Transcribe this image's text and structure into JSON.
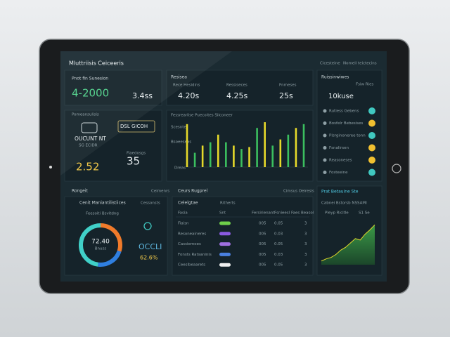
{
  "header": {
    "title": "Mluttriisis Ceiceeris",
    "links": [
      "Cicesteine",
      "Nomeil teictecins"
    ]
  },
  "summary": {
    "label": "Pnot fin Sunesion",
    "value": "4-2000",
    "side_value": "3.4ss"
  },
  "metrics": {
    "title": "Resisea",
    "items": [
      {
        "label": "Rece Hesidins",
        "value": "4.20s"
      },
      {
        "label": "Ressiseces",
        "value": "4.25s"
      },
      {
        "label": "Fnmeses",
        "value": "25s"
      }
    ]
  },
  "activity": {
    "title": "Ruissinwiwes",
    "link": "Fsiw Ries",
    "stat": "10kuse",
    "items": [
      "Rutiess Gebens",
      "Bosfelr Bebesises",
      "Plsrginoneree tonn",
      "Fsnalirsen",
      "Reasoneses",
      "Fosteeine"
    ]
  },
  "promo": {
    "title": "Pomeansulisis",
    "badge": "DSL GICOH",
    "headline": "OUCUNT NT",
    "subline": "SG ECIDR",
    "value_a": "2.52",
    "value_b": "35",
    "label_b": "Fiaedosgs"
  },
  "bar_panel": {
    "title": "Fessrearlise Puecoites Silconeer",
    "label_a": "Scesnter",
    "label_b": "Bsoeeseas",
    "label_c": "Dreas",
    "values": [
      90,
      30,
      45,
      52,
      68,
      52,
      45,
      38,
      42,
      82,
      94,
      45,
      58,
      68,
      82,
      90
    ]
  },
  "bottom": {
    "left_title": "Rongeit",
    "left_link": "Ceimenrs",
    "mid_title": "Ceurs Rugprel",
    "mid_link": "Cimsus Oeiresis"
  },
  "donut": {
    "title": "Cenit Maniantilistiices",
    "link": "Cessonsts",
    "sub": "Feesoiti Bsvitdng",
    "center": "72.40",
    "center_sub": "Bnuss",
    "side_label": "OCCLI",
    "side_value": "62.6%",
    "segments": [
      30,
      22,
      48
    ]
  },
  "table": {
    "title": "Celelgtae",
    "title2": "Ritherts",
    "columns": [
      "Fasia",
      "Snt",
      "Fersirienant",
      "Fsnieesl",
      "Faes Beasol"
    ],
    "rows": [
      [
        "Fiaisn",
        "005",
        "0.05",
        "3"
      ],
      [
        "Resoneaineres",
        "005",
        "0.03",
        "3"
      ],
      [
        "Cassiemoes",
        "005",
        "0.05",
        "3"
      ],
      [
        "Fonsts Ratsaninis",
        "005",
        "0.03",
        "3"
      ],
      [
        "Ceeslbeaarets",
        "005",
        "0.05",
        "3"
      ]
    ]
  },
  "trend": {
    "title": "Prat Betauine Ste",
    "subtitle": "Cabnei Bstorsb NSSAMI",
    "label": "Pleyp Ricitle",
    "legend": "S1 Se",
    "values": [
      5,
      8,
      10,
      14,
      20,
      24,
      30,
      36,
      34,
      42,
      48,
      55
    ]
  }
}
